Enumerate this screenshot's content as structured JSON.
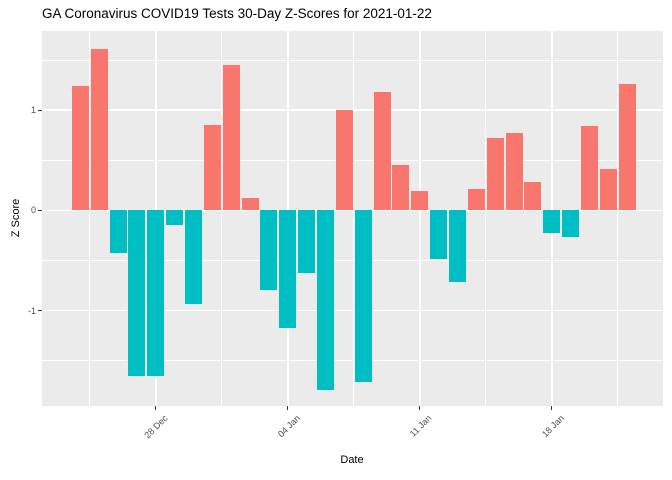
{
  "chart_data": {
    "type": "bar",
    "title": "GA Coronavirus COVID19 Tests 30-Day Z-Scores for 2021-01-22",
    "xlabel": "Date",
    "ylabel": "Z Score",
    "x": [
      "2020-12-24",
      "2020-12-25",
      "2020-12-26",
      "2020-12-27",
      "2020-12-28",
      "2020-12-29",
      "2020-12-30",
      "2020-12-31",
      "2021-01-01",
      "2021-01-02",
      "2021-01-03",
      "2021-01-04",
      "2021-01-05",
      "2021-01-06",
      "2021-01-07",
      "2021-01-08",
      "2021-01-09",
      "2021-01-10",
      "2021-01-11",
      "2021-01-12",
      "2021-01-13",
      "2021-01-14",
      "2021-01-15",
      "2021-01-16",
      "2021-01-17",
      "2021-01-18",
      "2021-01-19",
      "2021-01-20",
      "2021-01-21",
      "2021-01-22"
    ],
    "values": [
      1.24,
      1.61,
      -0.42,
      -1.65,
      -1.65,
      -0.14,
      -0.93,
      0.85,
      1.45,
      0.12,
      -0.79,
      -1.17,
      -0.62,
      -1.79,
      1.0,
      -1.71,
      1.18,
      0.45,
      0.19,
      -0.48,
      -0.71,
      0.21,
      0.72,
      0.77,
      0.28,
      -0.22,
      -0.26,
      0.84,
      0.41,
      1.26
    ],
    "colors": {
      "positive_bar": "#F8766D",
      "negative_bar": "#00BFC4",
      "panel_background": "#EBEBEB",
      "gridline": "#FFFFFF",
      "axis_text": "#4D4D4D",
      "tick_mark": "#333333",
      "title_text": "#000000"
    },
    "ylim": [
      -1.95,
      1.79
    ],
    "yticks": [
      1,
      0,
      -1
    ],
    "ytick_labels": [
      "1",
      "0",
      "-1"
    ],
    "yticks_minor": [
      1.5,
      0.5,
      -0.5,
      -1.5
    ],
    "xtick_day_index": [
      4,
      11,
      18,
      25
    ],
    "xtick_labels": [
      "28 Dec",
      "04 Jan",
      "11 Jan",
      "18 Jan"
    ],
    "xticks_minor_day_index": [
      0.5,
      7.5,
      14.5,
      21.5,
      28.5
    ],
    "legend_position": "none",
    "grid": "major+minor white on gray"
  }
}
